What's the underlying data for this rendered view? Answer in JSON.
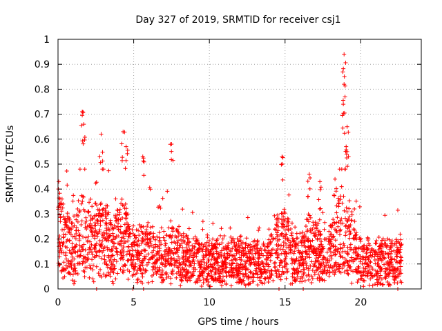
{
  "chart_data": {
    "type": "scatter",
    "title": "Day 327 of 2019, SRMTID for receiver csj1",
    "xlabel": "GPS time / hours",
    "ylabel": "SRMTID / TECUs",
    "xlim": [
      0,
      24
    ],
    "ylim": [
      0,
      1
    ],
    "grid": true,
    "marker": "+",
    "color": "#ff0000",
    "x_ticks": [
      0,
      5,
      10,
      15,
      20
    ],
    "x_tick_labels": [
      "0",
      "5",
      "10",
      "15",
      "20"
    ],
    "y_ticks": [
      0,
      0.1,
      0.2,
      0.3,
      0.4,
      0.5,
      0.6,
      0.7,
      0.8,
      0.9,
      1
    ],
    "y_tick_labels": [
      "0",
      "0.1",
      "0.2",
      "0.3",
      "0.4",
      "0.5",
      "0.6",
      "0.7",
      "0.8",
      "0.9",
      "1"
    ],
    "n_points_approx": 2600,
    "x_range_hours": [
      0,
      22.7
    ],
    "baseline_band": [
      0.0,
      0.3
    ],
    "burst_peaks": [
      {
        "x": 0.05,
        "y": 0.43
      },
      {
        "x": 1.6,
        "y": 0.71
      },
      {
        "x": 1.7,
        "y": 0.66
      },
      {
        "x": 2.85,
        "y": 0.62
      },
      {
        "x": 4.3,
        "y": 0.63
      },
      {
        "x": 4.5,
        "y": 0.57
      },
      {
        "x": 5.6,
        "y": 0.53
      },
      {
        "x": 7.5,
        "y": 0.58
      },
      {
        "x": 14.8,
        "y": 0.53
      },
      {
        "x": 16.6,
        "y": 0.46
      },
      {
        "x": 17.3,
        "y": 0.43
      },
      {
        "x": 18.3,
        "y": 0.44
      },
      {
        "x": 18.9,
        "y": 0.94
      },
      {
        "x": 18.9,
        "y": 0.82
      },
      {
        "x": 18.85,
        "y": 0.74
      },
      {
        "x": 19.1,
        "y": 0.65
      },
      {
        "x": 19.1,
        "y": 0.55
      }
    ],
    "zero_markers_x": [
      2.55,
      4.95,
      5.65,
      14.6,
      16.2,
      22.45
    ]
  }
}
